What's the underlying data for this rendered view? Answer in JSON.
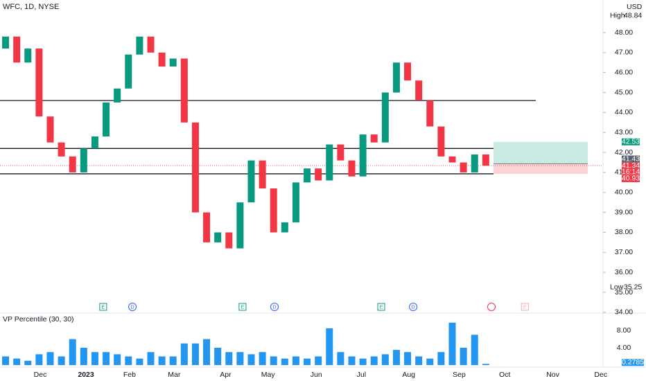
{
  "header": {
    "symbol": "WFC, 1D, NYSE",
    "currency": "USD"
  },
  "chart_data": [
    {
      "type": "candlestick",
      "x": [
        2.5,
        7.5,
        12.5,
        17.5,
        22.5,
        27.5,
        32.5,
        37.5,
        42.5,
        47.5,
        52.5,
        57.5,
        62.5,
        67.5,
        72.5,
        77.5,
        82.5,
        87.5,
        92.5,
        97.5,
        102.5,
        107.5,
        112.5,
        117.5,
        122.5,
        127.5,
        132.5,
        137.5,
        142.5,
        147.5,
        152.5,
        157.5,
        162.5,
        167.5,
        172.5,
        177.5,
        182.5,
        187.5,
        192.5,
        197.5,
        202.5,
        207.5,
        212.5,
        217.5
      ],
      "open": [
        47.2,
        47.8,
        46.5,
        47.2,
        43.8,
        42.5,
        41.8,
        41,
        42.2,
        42.8,
        44.5,
        45.2,
        46.9,
        47.8,
        47,
        46.3,
        46.7,
        43.5,
        39,
        37.5,
        38,
        37.2,
        39.5,
        41.6,
        40.2,
        38,
        38.5,
        40.5,
        41.2,
        40.6,
        42.4,
        41.6,
        40.8,
        42.9,
        42.5,
        45,
        46.5,
        45.6,
        44.6,
        43.3,
        41.8,
        41.5,
        41,
        41.9
      ],
      "high": {
        "label": "High",
        "value": 48.84
      },
      "low": {
        "label": "Low",
        "value": 35.25
      },
      "close": [
        47.8,
        46.5,
        47.2,
        43.8,
        42.5,
        41.8,
        41,
        42.2,
        42.8,
        44.5,
        45.2,
        46.9,
        47.8,
        47,
        46.3,
        46.7,
        43.5,
        39,
        37.5,
        38,
        37.2,
        39.5,
        41.6,
        40.2,
        38,
        38.5,
        40.5,
        41.2,
        40.6,
        42.4,
        41.6,
        40.8,
        42.9,
        42.5,
        45,
        46.5,
        45.6,
        44.6,
        43.3,
        41.8,
        41.5,
        41,
        41.9,
        41.34
      ],
      "up_color": "#089981",
      "down_color": "#f23645",
      "xlim": [
        0,
        270
      ],
      "xticks": [
        {
          "value": 18,
          "label": "Dec"
        },
        {
          "value": 38.5,
          "label": "2023"
        },
        {
          "value": 58,
          "label": "Feb"
        },
        {
          "value": 78,
          "label": "Mar"
        },
        {
          "value": 101,
          "label": "Apr"
        },
        {
          "value": 120,
          "label": "May"
        },
        {
          "value": 141.6,
          "label": "Jun"
        },
        {
          "value": 161.8,
          "label": "Jul"
        },
        {
          "value": 183,
          "label": "Aug"
        },
        {
          "value": 205.6,
          "label": "Sep"
        },
        {
          "value": 226,
          "label": "Oct"
        },
        {
          "value": 247.5,
          "label": "Nov"
        },
        {
          "value": 269,
          "label": "Dec"
        }
      ],
      "ylim": [
        33.96,
        49.63
      ],
      "yticks": [
        {
          "value": 34,
          "label": "34.00"
        },
        {
          "value": 35,
          "label": "35.00"
        },
        {
          "value": 36,
          "label": "36.00"
        },
        {
          "value": 37,
          "label": "37.00"
        },
        {
          "value": 38,
          "label": "38.00"
        },
        {
          "value": 39,
          "label": "39.00"
        },
        {
          "value": 40,
          "label": "40.00"
        },
        {
          "value": 41,
          "label": "41.00"
        },
        {
          "value": 42,
          "label": "42.00"
        },
        {
          "value": 43,
          "label": "43.00"
        },
        {
          "value": 44,
          "label": "44.00"
        },
        {
          "value": 45,
          "label": "45.00"
        },
        {
          "value": 46,
          "label": "46.00"
        },
        {
          "value": 47,
          "label": "47.00"
        },
        {
          "value": 48,
          "label": "48.00"
        }
      ],
      "levels": [
        44.6,
        42.2,
        40.93
      ],
      "position": {
        "target": 42.53,
        "entry": 41.43,
        "stop": 40.93
      },
      "last_price": 41.34,
      "countdown": "16:14",
      "events": [
        {
          "label": "E",
          "x": 46.2
        },
        {
          "label": "D",
          "x": 59.3
        },
        {
          "label": "E",
          "x": 108.6
        },
        {
          "label": "D",
          "x": 122.9
        },
        {
          "label": "E",
          "x": 170.7
        },
        {
          "label": "D",
          "x": 185
        },
        {
          "label": "E",
          "x": 235
        }
      ]
    },
    {
      "type": "bar",
      "title": "VP Percentile (30, 30)",
      "x": [
        2.5,
        7.5,
        12.5,
        17.5,
        22.5,
        27.5,
        32.5,
        37.5,
        42.5,
        47.5,
        52.5,
        57.5,
        62.5,
        67.5,
        72.5,
        77.5,
        82.5,
        87.5,
        92.5,
        97.5,
        102.5,
        107.5,
        112.5,
        117.5,
        122.5,
        127.5,
        132.5,
        137.5,
        142.5,
        147.5,
        152.5,
        157.5,
        162.5,
        167.5,
        172.5,
        177.5,
        182.5,
        187.5,
        192.5,
        197.5,
        202.5,
        207.5,
        212.5,
        217.5
      ],
      "values": [
        2,
        1.5,
        1,
        2.5,
        3,
        2,
        6,
        4,
        3,
        3,
        2.5,
        2,
        1.5,
        3,
        2,
        2,
        5,
        5,
        6,
        4,
        3,
        3,
        2.5,
        3,
        2,
        1.5,
        2,
        1.5,
        2,
        8.5,
        3,
        2,
        1.5,
        2,
        2.5,
        3.5,
        3,
        2,
        1.5,
        3,
        9.8,
        4,
        7,
        0.2785
      ],
      "color": "#2196f3",
      "ylim": [
        0,
        10.5
      ],
      "yticks": [
        {
          "value": 4,
          "label": "4.00"
        },
        {
          "value": 8,
          "label": "8.00"
        }
      ],
      "last_value": 0.2785
    }
  ]
}
